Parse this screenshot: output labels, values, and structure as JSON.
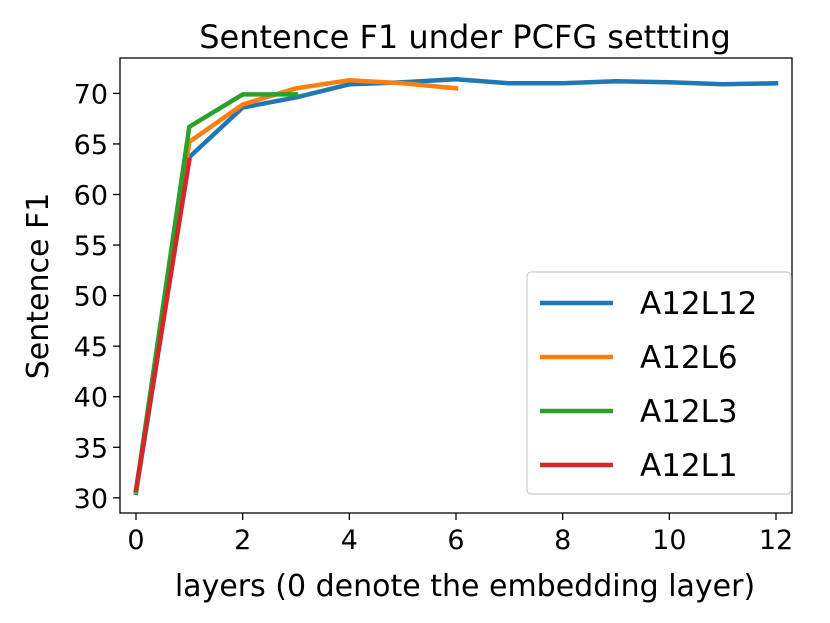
{
  "chart_data": {
    "type": "line",
    "title": "Sentence F1 under PCFG settting",
    "xlabel": "layers (0 denote the embedding layer)",
    "ylabel": "Sentence F1",
    "xlim": [
      -0.3,
      12.3
    ],
    "ylim": [
      28.5,
      73.5
    ],
    "xticks": [
      0,
      2,
      4,
      6,
      8,
      10,
      12
    ],
    "yticks": [
      30,
      35,
      40,
      45,
      50,
      55,
      60,
      65,
      70
    ],
    "legend_position": "lower-right",
    "grid": false,
    "series": [
      {
        "name": "A12L12",
        "color": "#1f77b4",
        "x": [
          0,
          1,
          2,
          3,
          4,
          5,
          6,
          7,
          8,
          9,
          10,
          11,
          12
        ],
        "y": [
          30.5,
          63.7,
          68.6,
          69.6,
          70.9,
          71.1,
          71.4,
          71.0,
          71.0,
          71.2,
          71.1,
          70.9,
          71.0
        ]
      },
      {
        "name": "A12L6",
        "color": "#ff7f0e",
        "x": [
          0,
          1,
          2,
          3,
          4,
          5,
          6
        ],
        "y": [
          30.6,
          65.2,
          68.9,
          70.5,
          71.3,
          71.0,
          70.5
        ]
      },
      {
        "name": "A12L3",
        "color": "#2ca02c",
        "x": [
          0,
          1,
          2,
          3
        ],
        "y": [
          30.7,
          66.7,
          69.9,
          69.9
        ]
      },
      {
        "name": "A12L1",
        "color": "#d62728",
        "x": [
          0,
          1
        ],
        "y": [
          30.8,
          63.4
        ]
      }
    ]
  }
}
